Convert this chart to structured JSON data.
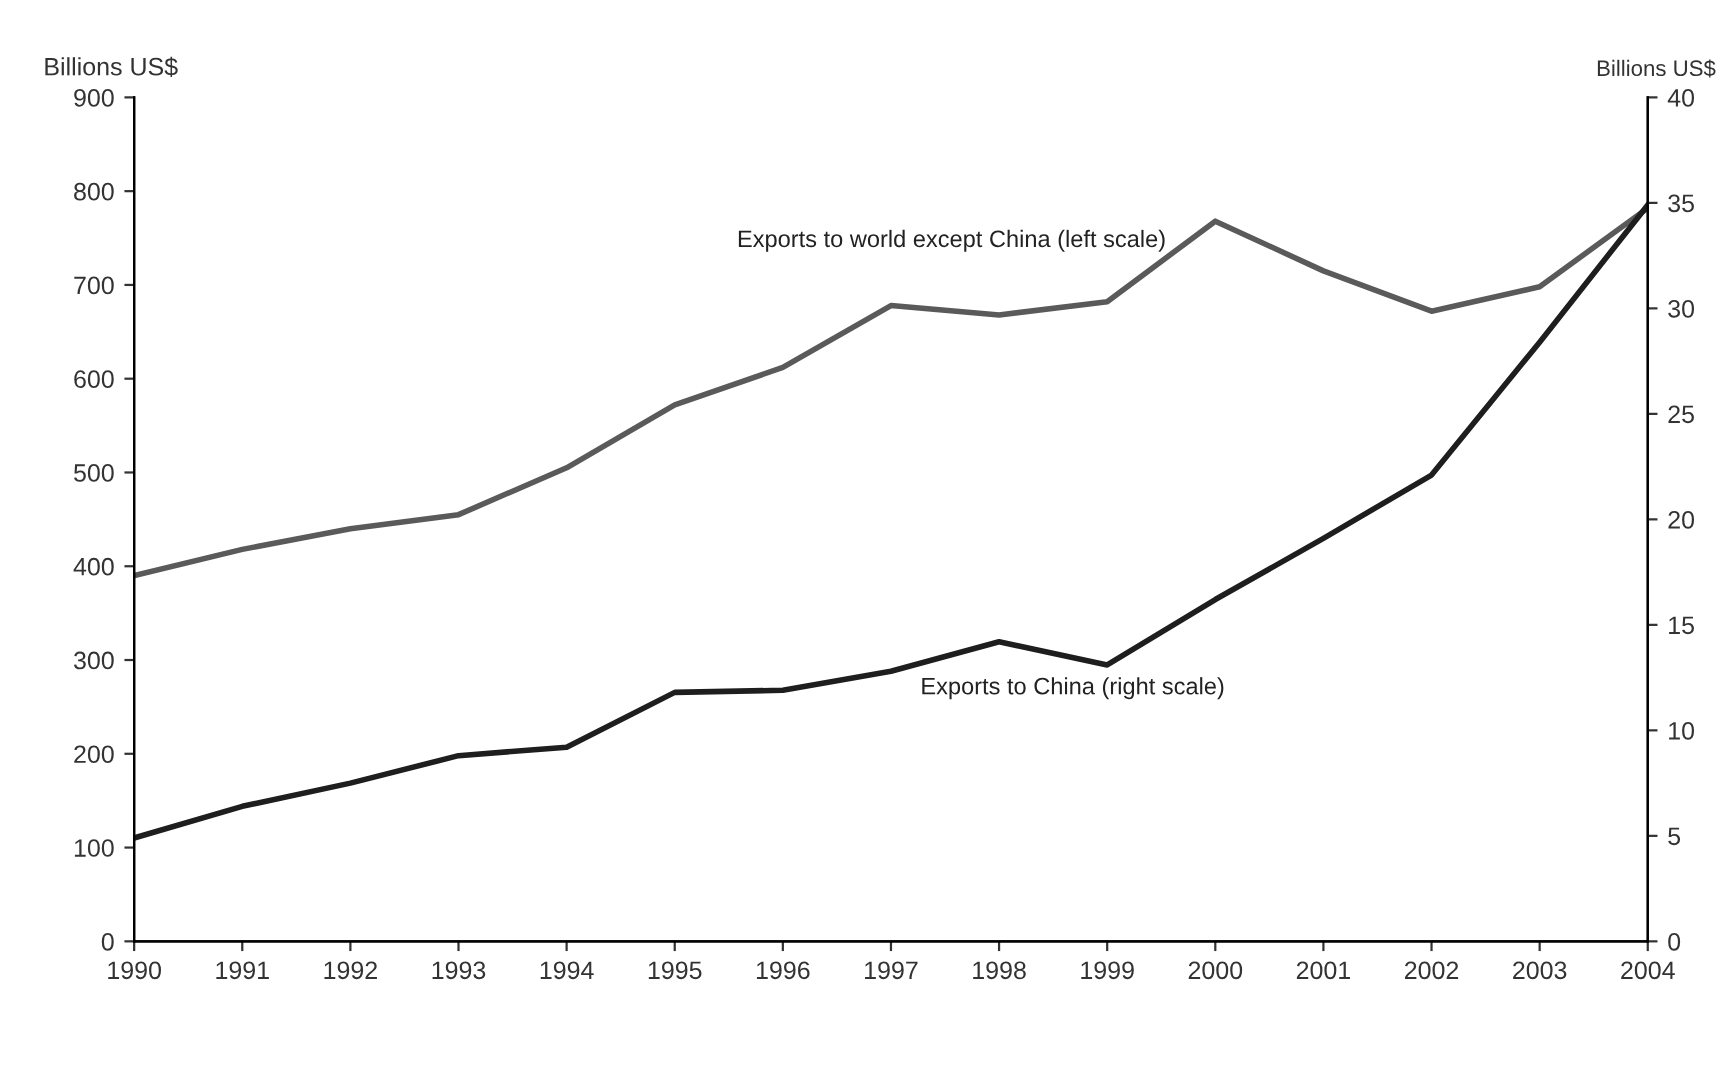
{
  "chart_data": {
    "type": "line",
    "ylabel": "Billions US$",
    "y2label": "Billions US$",
    "x": [
      1990,
      1991,
      1992,
      1993,
      1994,
      1995,
      1996,
      1997,
      1998,
      1999,
      2000,
      2001,
      2002,
      2003,
      2004
    ],
    "xlim": [
      1990,
      2004
    ],
    "xticks": [
      1990,
      1991,
      1992,
      1993,
      1994,
      1995,
      1996,
      1997,
      1998,
      1999,
      2000,
      2001,
      2002,
      2003,
      2004
    ],
    "ylim": [
      0,
      900
    ],
    "yticks": [
      0,
      100,
      200,
      300,
      400,
      500,
      600,
      700,
      800,
      900
    ],
    "y2lim": [
      0,
      40
    ],
    "y2ticks": [
      0,
      5,
      10,
      15,
      20,
      25,
      30,
      35,
      40
    ],
    "grid": false,
    "legend": false,
    "marker": "none",
    "line_style": "solid",
    "series": [
      {
        "name": "Exports to world except China (left scale)",
        "color": "#5a5a5a",
        "values": [
          390,
          418,
          440,
          455,
          505,
          572,
          612,
          678,
          668,
          682,
          768,
          715,
          672,
          698,
          782
        ]
      },
      {
        "name": "Exports to China (right scale)",
        "color": "#1e1e1e",
        "axis": "y2",
        "values": [
          4.9,
          6.4,
          7.5,
          8.8,
          9.2,
          11.8,
          11.9,
          12.8,
          14.2,
          13.1,
          16.2,
          19.1,
          22.1,
          28.4,
          34.9
        ]
      }
    ]
  }
}
